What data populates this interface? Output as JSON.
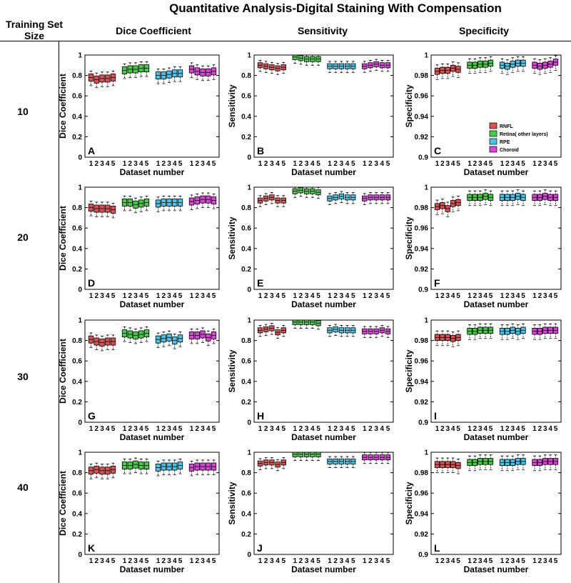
{
  "header": {
    "title": "Quantitative Analysis-Digital Staining With Compensation",
    "training_set_size_label": "Training Set Size",
    "columns": [
      "Dice Coefficient",
      "Sensitivity",
      "Specificity"
    ],
    "rows": [
      "10",
      "20",
      "30",
      "40"
    ]
  },
  "colors": {
    "RNFL": "#e05050",
    "Retina": "#40d040",
    "RPE": "#40c8f0",
    "Choroid": "#e040e0"
  },
  "chart_data": [
    {
      "panel": "A",
      "type": "box",
      "metric": "Dice Coefficient",
      "training_set_size": "10",
      "xlabel": "Dataset number",
      "ylabel": "Dice Coefficient",
      "ylim": [
        0,
        1
      ],
      "yticks": [
        "0",
        "0.2",
        "0.4",
        "0.6",
        "0.8",
        "1"
      ],
      "series": [
        {
          "name": "RNFL",
          "median": [
            0.78,
            0.76,
            0.77,
            0.77,
            0.78
          ]
        },
        {
          "name": "Retina( other layers)",
          "median": [
            0.85,
            0.86,
            0.86,
            0.87,
            0.87
          ]
        },
        {
          "name": "RPE",
          "median": [
            0.8,
            0.8,
            0.81,
            0.82,
            0.82
          ]
        },
        {
          "name": "Choroid",
          "median": [
            0.86,
            0.84,
            0.83,
            0.83,
            0.84
          ]
        }
      ]
    },
    {
      "panel": "B",
      "type": "box",
      "metric": "Sensitivity",
      "training_set_size": "10",
      "xlabel": "Dataset number",
      "ylabel": "Sensitivity",
      "ylim": [
        0,
        1
      ],
      "yticks": [
        "0",
        "0.2",
        "0.4",
        "0.6",
        "0.8",
        "1"
      ],
      "series": [
        {
          "name": "RNFL",
          "median": [
            0.9,
            0.89,
            0.88,
            0.87,
            0.88
          ]
        },
        {
          "name": "Retina( other layers)",
          "median": [
            0.98,
            0.97,
            0.96,
            0.96,
            0.96
          ]
        },
        {
          "name": "RPE",
          "median": [
            0.89,
            0.89,
            0.89,
            0.89,
            0.89
          ]
        },
        {
          "name": "Choroid",
          "median": [
            0.89,
            0.9,
            0.91,
            0.9,
            0.9
          ]
        }
      ]
    },
    {
      "panel": "C",
      "type": "box",
      "metric": "Specificity",
      "training_set_size": "10",
      "xlabel": "Dataset number",
      "ylabel": "Specificity",
      "ylim": [
        0.9,
        1
      ],
      "yticks": [
        "0.9",
        "0.92",
        "0.94",
        "0.96",
        "0.98",
        "1"
      ],
      "legend": [
        "RNFL",
        "Retina( other layers)",
        "RPE",
        "Choroid"
      ],
      "series": [
        {
          "name": "RNFL",
          "median": [
            0.984,
            0.985,
            0.985,
            0.987,
            0.986
          ]
        },
        {
          "name": "Retina( other layers)",
          "median": [
            0.99,
            0.99,
            0.991,
            0.991,
            0.992
          ]
        },
        {
          "name": "RPE",
          "median": [
            0.99,
            0.989,
            0.991,
            0.992,
            0.992
          ]
        },
        {
          "name": "Choroid",
          "median": [
            0.99,
            0.989,
            0.99,
            0.991,
            0.993
          ]
        }
      ]
    },
    {
      "panel": "D",
      "type": "box",
      "metric": "Dice Coefficient",
      "training_set_size": "20",
      "xlabel": "Dataset number",
      "ylabel": "Dice Coefficient",
      "ylim": [
        0,
        1
      ],
      "yticks": [
        "0",
        "0.2",
        "0.4",
        "0.6",
        "0.8",
        "1"
      ],
      "series": [
        {
          "name": "RNFL",
          "median": [
            0.8,
            0.79,
            0.79,
            0.79,
            0.78
          ]
        },
        {
          "name": "Retina( other layers)",
          "median": [
            0.85,
            0.85,
            0.83,
            0.84,
            0.85
          ]
        },
        {
          "name": "RPE",
          "median": [
            0.84,
            0.85,
            0.85,
            0.85,
            0.85
          ]
        },
        {
          "name": "Choroid",
          "median": [
            0.86,
            0.87,
            0.88,
            0.88,
            0.87
          ]
        }
      ]
    },
    {
      "panel": "E",
      "type": "box",
      "metric": "Sensitivity",
      "training_set_size": "20",
      "xlabel": "Dataset number",
      "ylabel": "Sensitivity",
      "ylim": [
        0,
        1
      ],
      "yticks": [
        "0",
        "0.2",
        "0.4",
        "0.6",
        "0.8",
        "1"
      ],
      "series": [
        {
          "name": "RNFL",
          "median": [
            0.87,
            0.89,
            0.9,
            0.87,
            0.87
          ]
        },
        {
          "name": "Retina( other layers)",
          "median": [
            0.96,
            0.97,
            0.96,
            0.96,
            0.95
          ]
        },
        {
          "name": "RPE",
          "median": [
            0.89,
            0.9,
            0.91,
            0.9,
            0.9
          ]
        },
        {
          "name": "Choroid",
          "median": [
            0.89,
            0.9,
            0.9,
            0.9,
            0.9
          ]
        }
      ]
    },
    {
      "panel": "F",
      "type": "box",
      "metric": "Specificity",
      "training_set_size": "20",
      "xlabel": "Dataset number",
      "ylabel": "Specificity",
      "ylim": [
        0.9,
        1
      ],
      "yticks": [
        "0.9",
        "0.92",
        "0.94",
        "0.96",
        "0.98",
        "1"
      ],
      "series": [
        {
          "name": "RNFL",
          "median": [
            0.981,
            0.982,
            0.979,
            0.984,
            0.985
          ]
        },
        {
          "name": "Retina( other layers)",
          "median": [
            0.99,
            0.99,
            0.99,
            0.991,
            0.99
          ]
        },
        {
          "name": "RPE",
          "median": [
            0.99,
            0.99,
            0.99,
            0.991,
            0.99
          ]
        },
        {
          "name": "Choroid",
          "median": [
            0.99,
            0.99,
            0.991,
            0.99,
            0.99
          ]
        }
      ]
    },
    {
      "panel": "G",
      "type": "box",
      "metric": "Dice Coefficient",
      "training_set_size": "30",
      "xlabel": "Dataset number",
      "ylabel": "Dice Coefficient",
      "ylim": [
        0,
        1
      ],
      "yticks": [
        "0",
        "0.2",
        "0.4",
        "0.6",
        "0.8",
        "1"
      ],
      "series": [
        {
          "name": "RNFL",
          "median": [
            0.81,
            0.79,
            0.78,
            0.79,
            0.79
          ]
        },
        {
          "name": "Retina( other layers)",
          "median": [
            0.87,
            0.86,
            0.85,
            0.86,
            0.87
          ]
        },
        {
          "name": "RPE",
          "median": [
            0.81,
            0.82,
            0.83,
            0.8,
            0.82
          ]
        },
        {
          "name": "Choroid",
          "median": [
            0.85,
            0.85,
            0.86,
            0.83,
            0.85
          ]
        }
      ]
    },
    {
      "panel": "H",
      "type": "box",
      "metric": "Sensitivity",
      "training_set_size": "30",
      "xlabel": "Dataset number",
      "ylabel": "Sensitivity",
      "ylim": [
        0,
        1
      ],
      "yticks": [
        "0",
        "0.2",
        "0.4",
        "0.6",
        "0.8",
        "1"
      ],
      "series": [
        {
          "name": "RNFL",
          "median": [
            0.9,
            0.91,
            0.92,
            0.88,
            0.9
          ]
        },
        {
          "name": "Retina( other layers)",
          "median": [
            0.98,
            0.98,
            0.98,
            0.98,
            0.97
          ]
        },
        {
          "name": "RPE",
          "median": [
            0.9,
            0.91,
            0.9,
            0.9,
            0.9
          ]
        },
        {
          "name": "Choroid",
          "median": [
            0.89,
            0.89,
            0.89,
            0.9,
            0.89
          ]
        }
      ]
    },
    {
      "panel": "I",
      "type": "box",
      "metric": "Specificity",
      "training_set_size": "30",
      "xlabel": "Dataset number",
      "ylabel": "Specificity",
      "ylim": [
        0.9,
        1
      ],
      "yticks": [
        "0.9",
        "0.92",
        "0.94",
        "0.96",
        "0.98",
        "1"
      ],
      "series": [
        {
          "name": "RNFL",
          "median": [
            0.983,
            0.983,
            0.983,
            0.982,
            0.983
          ]
        },
        {
          "name": "Retina( other layers)",
          "median": [
            0.989,
            0.989,
            0.99,
            0.99,
            0.99
          ]
        },
        {
          "name": "RPE",
          "median": [
            0.989,
            0.989,
            0.99,
            0.989,
            0.99
          ]
        },
        {
          "name": "Choroid",
          "median": [
            0.989,
            0.989,
            0.99,
            0.99,
            0.99
          ]
        }
      ]
    },
    {
      "panel": "K",
      "type": "box",
      "metric": "Dice Coefficient",
      "training_set_size": "40",
      "xlabel": "Dataset number",
      "ylabel": "Dice Coefficient",
      "ylim": [
        0,
        1
      ],
      "yticks": [
        "0",
        "0.2",
        "0.4",
        "0.6",
        "0.8",
        "1"
      ],
      "series": [
        {
          "name": "RNFL",
          "median": [
            0.82,
            0.83,
            0.82,
            0.82,
            0.83
          ]
        },
        {
          "name": "Retina( other layers)",
          "median": [
            0.87,
            0.87,
            0.88,
            0.87,
            0.87
          ]
        },
        {
          "name": "RPE",
          "median": [
            0.85,
            0.86,
            0.86,
            0.86,
            0.87
          ]
        },
        {
          "name": "Choroid",
          "median": [
            0.85,
            0.86,
            0.86,
            0.86,
            0.86
          ]
        }
      ]
    },
    {
      "panel": "J",
      "type": "box",
      "metric": "Sensitivity",
      "training_set_size": "40",
      "xlabel": "Dataset number",
      "ylabel": "Sensitivity",
      "ylim": [
        0,
        1
      ],
      "yticks": [
        "0",
        "0.2",
        "0.4",
        "0.6",
        "0.8",
        "1"
      ],
      "series": [
        {
          "name": "RNFL",
          "median": [
            0.89,
            0.9,
            0.9,
            0.88,
            0.9
          ]
        },
        {
          "name": "Retina( other layers)",
          "median": [
            0.98,
            0.98,
            0.98,
            0.98,
            0.98
          ]
        },
        {
          "name": "RPE",
          "median": [
            0.91,
            0.91,
            0.91,
            0.91,
            0.91
          ]
        },
        {
          "name": "Choroid",
          "median": [
            0.95,
            0.95,
            0.95,
            0.95,
            0.95
          ]
        }
      ]
    },
    {
      "panel": "L",
      "type": "box",
      "metric": "Specificity",
      "training_set_size": "40",
      "xlabel": "Dataset number",
      "ylabel": "Specificity",
      "ylim": [
        0.9,
        1
      ],
      "yticks": [
        "0.9",
        "0.92",
        "0.94",
        "0.96",
        "0.98",
        "1"
      ],
      "series": [
        {
          "name": "RNFL",
          "median": [
            0.988,
            0.988,
            0.988,
            0.988,
            0.987
          ]
        },
        {
          "name": "Retina( other layers)",
          "median": [
            0.99,
            0.99,
            0.991,
            0.991,
            0.991
          ]
        },
        {
          "name": "RPE",
          "median": [
            0.99,
            0.99,
            0.99,
            0.991,
            0.991
          ]
        },
        {
          "name": "Choroid",
          "median": [
            0.99,
            0.99,
            0.991,
            0.991,
            0.991
          ]
        }
      ]
    }
  ]
}
